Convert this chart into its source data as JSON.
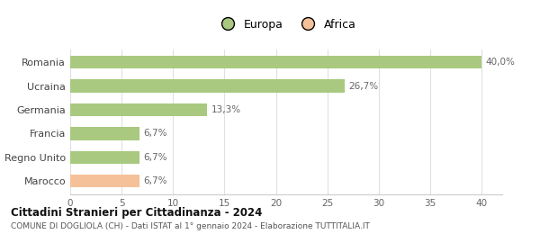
{
  "categories": [
    "Marocco",
    "Regno Unito",
    "Francia",
    "Germania",
    "Ucraina",
    "Romania"
  ],
  "values": [
    6.7,
    6.7,
    6.7,
    13.3,
    26.7,
    40.0
  ],
  "labels": [
    "6,7%",
    "6,7%",
    "6,7%",
    "13,3%",
    "26,7%",
    "40,0%"
  ],
  "colors": [
    "#f5c199",
    "#a8c97f",
    "#a8c97f",
    "#a8c97f",
    "#a8c97f",
    "#a8c97f"
  ],
  "legend": [
    {
      "label": "Europa",
      "color": "#a8c97f"
    },
    {
      "label": "Africa",
      "color": "#f5c199"
    }
  ],
  "xlim": [
    0,
    40
  ],
  "xticks": [
    0,
    5,
    10,
    15,
    20,
    25,
    30,
    35,
    40
  ],
  "title": "Cittadini Stranieri per Cittadinanza - 2024",
  "subtitle": "COMUNE DI DOGLIOLA (CH) - Dati ISTAT al 1° gennaio 2024 - Elaborazione TUTTITALIA.IT",
  "background_color": "#ffffff",
  "bar_height": 0.55
}
